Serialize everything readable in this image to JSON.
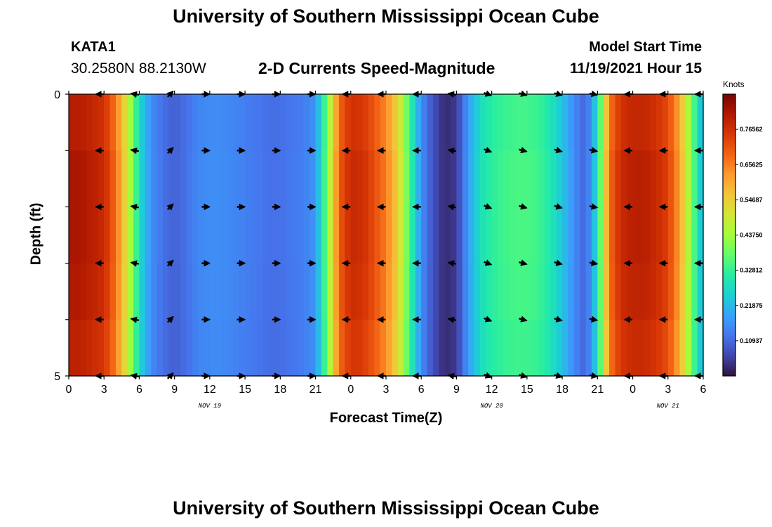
{
  "header": {
    "title": "University of Southern Mississippi Ocean Cube",
    "station": "KATA1",
    "coordinates": "30.2580N  88.2130W",
    "subtitle": "2-D Currents Speed-Magnitude",
    "model_start_label": "Model Start Time",
    "model_start_value": "11/19/2021 Hour 15"
  },
  "footer": {
    "title": "University of Southern Mississippi Ocean Cube"
  },
  "chart_data": {
    "type": "heatmap",
    "title": "2-D Currents Speed-Magnitude",
    "xlabel": "Forecast Time(Z)",
    "ylabel": "Depth (ft)",
    "x_ticks": [
      "0",
      "3",
      "6",
      "9",
      "12",
      "15",
      "18",
      "21",
      "0",
      "3",
      "6",
      "9",
      "12",
      "15",
      "18",
      "21",
      "0",
      "3",
      "6"
    ],
    "date_labels": [
      {
        "text": "NOV 19",
        "tick_index": 4
      },
      {
        "text": "NOV 20",
        "tick_index": 12
      },
      {
        "text": "NOV 21",
        "tick_index": 17
      }
    ],
    "y_ticks": [
      "0",
      "5"
    ],
    "y_range": [
      0,
      5
    ],
    "hours_total": 54,
    "colorbar": {
      "unit": "Knots",
      "min": 0,
      "max": 0.875,
      "tick_labels": [
        "0.76562",
        "0.65625",
        "0.54687",
        "0.43750",
        "0.32812",
        "0.21875",
        "0.10937"
      ],
      "tick_values": [
        0.76562,
        0.65625,
        0.54687,
        0.4375,
        0.32812,
        0.21875,
        0.10937
      ],
      "colors": [
        "#30123b",
        "#4145ab",
        "#4675ed",
        "#39a2fc",
        "#1bcfd4",
        "#24eca6",
        "#61fc6c",
        "#a4fc3b",
        "#d1e834",
        "#f3c63a",
        "#fe9b2d",
        "#f36315",
        "#d93806",
        "#b11901",
        "#7a0402"
      ]
    },
    "speed_profile_knots": [
      [
        0,
        0.82
      ],
      [
        1,
        0.82
      ],
      [
        2,
        0.8
      ],
      [
        3,
        0.78
      ],
      [
        4,
        0.68
      ],
      [
        5,
        0.5
      ],
      [
        6,
        0.28
      ],
      [
        7,
        0.16
      ],
      [
        8,
        0.12
      ],
      [
        9,
        0.1
      ],
      [
        10,
        0.12
      ],
      [
        11,
        0.15
      ],
      [
        12,
        0.16
      ],
      [
        13,
        0.16
      ],
      [
        14,
        0.15
      ],
      [
        15,
        0.14
      ],
      [
        16,
        0.13
      ],
      [
        17,
        0.12
      ],
      [
        18,
        0.12
      ],
      [
        19,
        0.13
      ],
      [
        20,
        0.14
      ],
      [
        21,
        0.17
      ],
      [
        22,
        0.4
      ],
      [
        23,
        0.7
      ],
      [
        24,
        0.78
      ],
      [
        25,
        0.77
      ],
      [
        26,
        0.72
      ],
      [
        27,
        0.66
      ],
      [
        28,
        0.55
      ],
      [
        29,
        0.35
      ],
      [
        30,
        0.16
      ],
      [
        31,
        0.08
      ],
      [
        32,
        0.03
      ],
      [
        33,
        0.05
      ],
      [
        34,
        0.18
      ],
      [
        35,
        0.28
      ],
      [
        36,
        0.32
      ],
      [
        37,
        0.34
      ],
      [
        38,
        0.35
      ],
      [
        39,
        0.35
      ],
      [
        40,
        0.34
      ],
      [
        41,
        0.3
      ],
      [
        42,
        0.24
      ],
      [
        43,
        0.16
      ],
      [
        44,
        0.1
      ],
      [
        45,
        0.28
      ],
      [
        46,
        0.68
      ],
      [
        47,
        0.78
      ],
      [
        48,
        0.8
      ],
      [
        49,
        0.8
      ],
      [
        50,
        0.78
      ],
      [
        51,
        0.74
      ],
      [
        52,
        0.62
      ],
      [
        53,
        0.4
      ],
      [
        54,
        0.2
      ]
    ],
    "depth_speed_factors": [
      0.98,
      1.0,
      1.0,
      0.99,
      0.97
    ],
    "vector_hours": [
      3,
      6,
      9,
      12,
      15,
      18,
      21,
      24,
      27,
      30,
      33,
      36,
      39,
      42,
      45,
      48,
      51,
      54
    ],
    "vector_direction_deg": [
      180,
      190,
      315,
      0,
      0,
      0,
      0,
      180,
      180,
      180,
      190,
      20,
      15,
      15,
      10,
      180,
      180,
      180
    ],
    "vector_depths": [
      0,
      1,
      2,
      3,
      4,
      5
    ]
  }
}
